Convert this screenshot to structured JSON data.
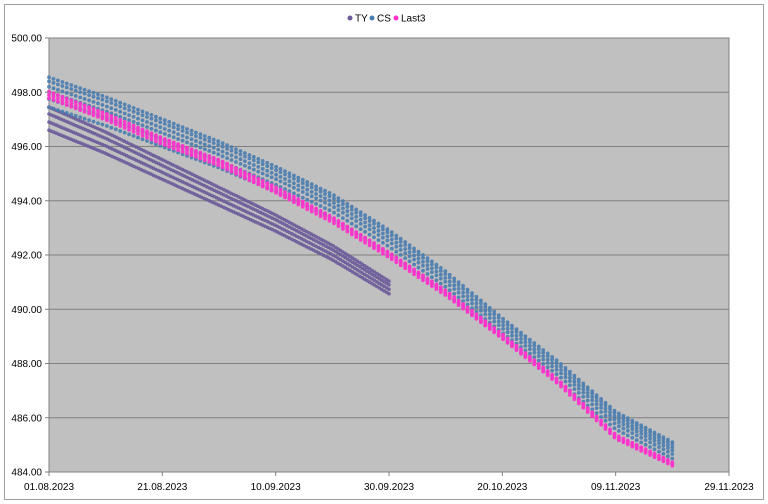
{
  "chart_data": {
    "type": "scatter",
    "title": "",
    "xlabel": "",
    "ylabel": "",
    "x_type": "date",
    "xlim": [
      "01.08.2023",
      "29.11.2023"
    ],
    "ylim": [
      484.0,
      500.0
    ],
    "y_ticks": [
      "484.00",
      "486.00",
      "488.00",
      "490.00",
      "492.00",
      "494.00",
      "496.00",
      "498.00",
      "500.00"
    ],
    "x_ticks": [
      "01.08.2023",
      "21.08.2023",
      "10.09.2023",
      "30.09.2023",
      "20.10.2023",
      "09.11.2023",
      "29.11.2023"
    ],
    "grid": "horizontal",
    "legend_position": "top-center",
    "plot_background": "#c0c0c0",
    "series": [
      {
        "name": "TY",
        "color": "#6b5b9a",
        "values": [
          {
            "x": "01.08.2023",
            "y": 497.2
          },
          {
            "x": "11.08.2023",
            "y": 496.3
          },
          {
            "x": "21.08.2023",
            "y": 495.3
          },
          {
            "x": "31.08.2023",
            "y": 494.3
          },
          {
            "x": "10.09.2023",
            "y": 493.3
          },
          {
            "x": "20.09.2023",
            "y": 492.2
          },
          {
            "x": "30.09.2023",
            "y": 490.9
          }
        ]
      },
      {
        "name": "CS",
        "color": "#4a7db0",
        "values": [
          {
            "x": "01.08.2023",
            "y": 498.0
          },
          {
            "x": "11.08.2023",
            "y": 497.3
          },
          {
            "x": "21.08.2023",
            "y": 496.5
          },
          {
            "x": "31.08.2023",
            "y": 495.7
          },
          {
            "x": "10.09.2023",
            "y": 494.8
          },
          {
            "x": "20.09.2023",
            "y": 493.8
          },
          {
            "x": "30.09.2023",
            "y": 492.5
          },
          {
            "x": "10.10.2023",
            "y": 491.0
          },
          {
            "x": "20.10.2023",
            "y": 489.3
          },
          {
            "x": "30.10.2023",
            "y": 487.7
          },
          {
            "x": "09.11.2023",
            "y": 485.9
          },
          {
            "x": "19.11.2023",
            "y": 484.8
          }
        ]
      },
      {
        "name": "Last3",
        "color": "#ff33cc",
        "values": [
          {
            "x": "01.08.2023",
            "y": 497.9
          },
          {
            "x": "11.08.2023",
            "y": 497.1
          },
          {
            "x": "21.08.2023",
            "y": 496.2
          },
          {
            "x": "31.08.2023",
            "y": 495.4
          },
          {
            "x": "10.09.2023",
            "y": 494.4
          },
          {
            "x": "20.09.2023",
            "y": 493.3
          },
          {
            "x": "30.09.2023",
            "y": 492.0
          },
          {
            "x": "10.10.2023",
            "y": 490.6
          },
          {
            "x": "20.10.2023",
            "y": 489.0
          },
          {
            "x": "30.10.2023",
            "y": 487.3
          },
          {
            "x": "09.11.2023",
            "y": 485.3
          },
          {
            "x": "19.11.2023",
            "y": 484.3
          }
        ]
      }
    ]
  }
}
